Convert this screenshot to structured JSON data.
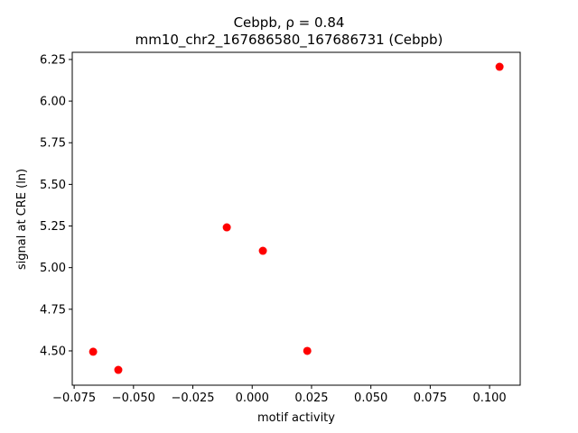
{
  "chart_data": {
    "type": "scatter",
    "title": "Cebpb, ρ = 0.84",
    "subtitle": "mm10_chr2_167686580_167686731 (Cebpb)",
    "x_label": "motif activity",
    "y_label": "signal at CRE (ln)",
    "color": "#ff0000",
    "x": [
      -0.067,
      -0.0564,
      -0.0107,
      0.0045,
      0.0232,
      0.1042
    ],
    "values": [
      4.495,
      4.386,
      5.242,
      5.101,
      4.5,
      6.206
    ],
    "xlim": [
      -0.0758,
      0.1129
    ],
    "ylim": [
      4.294,
      6.293
    ],
    "xticks": [
      {
        "value": -0.075,
        "label": "−0.075"
      },
      {
        "value": -0.05,
        "label": "−0.050"
      },
      {
        "value": -0.025,
        "label": "−0.025"
      },
      {
        "value": 0,
        "label": "0.000"
      },
      0.025,
      {
        "value": 0.05,
        "label": "0.050"
      },
      0.075,
      {
        "value": 0.1,
        "label": "0.100"
      }
    ],
    "yticks": [
      {
        "value": 4.5,
        "label": "4.50"
      },
      4.75,
      {
        "value": 5,
        "label": "5.00"
      },
      5.25,
      {
        "value": 5.5,
        "label": "5.50"
      },
      5.75,
      {
        "value": 6,
        "label": "6.00"
      },
      6.25
    ],
    "grid": false
  }
}
